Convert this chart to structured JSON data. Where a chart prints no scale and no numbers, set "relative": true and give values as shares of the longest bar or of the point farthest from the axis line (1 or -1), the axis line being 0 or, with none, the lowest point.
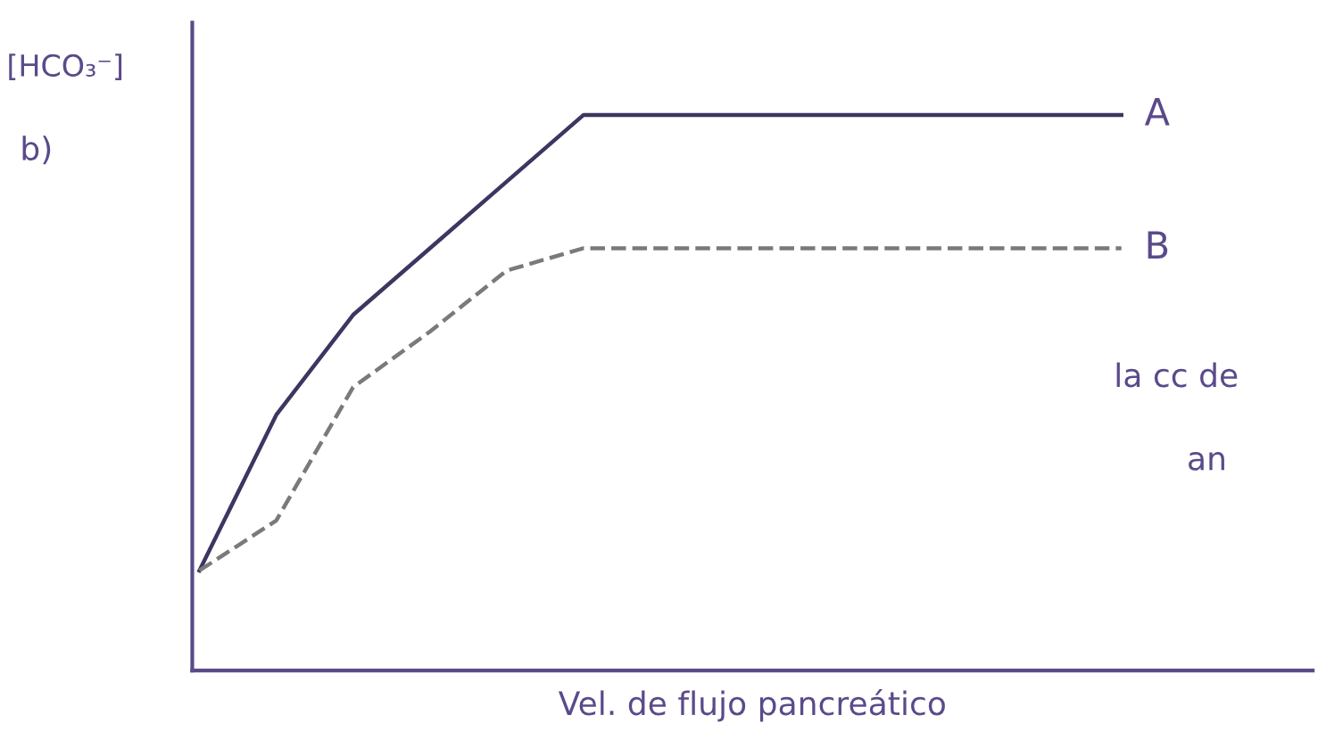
{
  "chart_data": {
    "type": "line",
    "relative": true,
    "ylabel": "[HCO₃⁻]",
    "xlabel": "Vel. de flujo pancreático",
    "annotations": [
      "b)",
      "la cc de",
      "an"
    ],
    "categories": [
      null,
      null,
      null,
      null,
      null,
      null,
      null,
      null,
      null,
      null,
      null,
      null,
      null
    ],
    "series": [
      {
        "name": "A",
        "color": "#3e3560",
        "line_style": "solid",
        "values": [
          0.18,
          0.46,
          0.64,
          0.76,
          0.88,
          1,
          1,
          1,
          1,
          1,
          1,
          1,
          1
        ]
      },
      {
        "name": "B",
        "color": "#7a7a7a",
        "line_style": "dashed",
        "values": [
          0.18,
          0.27,
          0.51,
          0.61,
          0.72,
          0.76,
          0.76,
          0.76,
          0.76,
          0.76,
          0.76,
          0.76,
          0.76
        ]
      }
    ]
  }
}
